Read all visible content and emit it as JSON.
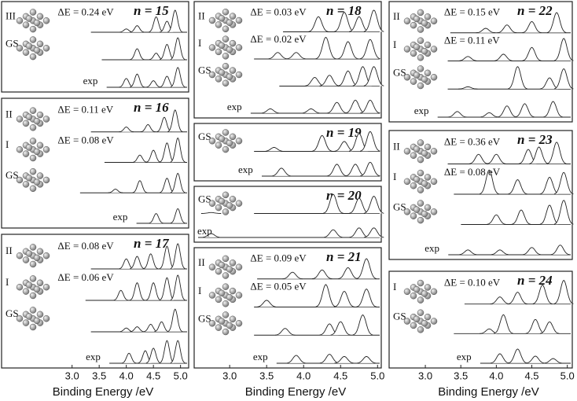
{
  "chart_data": [
    {
      "type": "spectra",
      "xlim": [
        1.7,
        5.15
      ],
      "xlabel": "Binding Energy /eV",
      "xticks": [
        {
          "value": 3,
          "label": "3.0"
        },
        {
          "value": 3.5,
          "label": "3.5"
        },
        {
          "value": 4,
          "label": "4.0"
        },
        {
          "value": 4.5,
          "label": "4.5"
        },
        {
          "value": 5,
          "label": "5.0"
        }
      ],
      "panels": [
        {
          "n": "n = 15",
          "traces": [
            {
              "label": "III",
              "delta_e": "ΔE = 0.24 eV",
              "peaks": [
                [
                  4.0,
                  0.15
                ],
                [
                  4.2,
                  0.3
                ],
                [
                  4.55,
                  0.7
                ],
                [
                  4.75,
                  0.5
                ],
                [
                  4.9,
                  1.0
                ]
              ]
            },
            {
              "label": "GS",
              "peaks": [
                [
                  4.2,
                  0.5
                ],
                [
                  4.55,
                  0.3
                ],
                [
                  4.75,
                  0.7
                ],
                [
                  4.95,
                  1.0
                ]
              ]
            },
            {
              "label": "exp",
              "peaks": [
                [
                  4.0,
                  0.4
                ],
                [
                  4.2,
                  0.6
                ],
                [
                  4.5,
                  0.3
                ],
                [
                  4.75,
                  0.5
                ],
                [
                  4.95,
                  0.9
                ]
              ]
            }
          ]
        },
        {
          "n": "n = 16",
          "traces": [
            {
              "label": "II",
              "delta_e": "ΔE = 0.11 eV",
              "peaks": [
                [
                  4.0,
                  0.2
                ],
                [
                  4.4,
                  0.3
                ],
                [
                  4.7,
                  0.6
                ],
                [
                  4.9,
                  0.9
                ]
              ]
            },
            {
              "label": "I",
              "delta_e": "ΔE = 0.08 eV",
              "peaks": [
                [
                  4.25,
                  0.3
                ],
                [
                  4.5,
                  0.5
                ],
                [
                  4.75,
                  0.8
                ],
                [
                  4.95,
                  1.0
                ]
              ]
            },
            {
              "label": "GS",
              "peaks": [
                [
                  3.8,
                  0.15
                ],
                [
                  4.25,
                  0.5
                ],
                [
                  4.75,
                  0.6
                ],
                [
                  4.95,
                  0.8
                ]
              ]
            },
            {
              "label": "exp",
              "peaks": [
                [
                  4.55,
                  0.4
                ],
                [
                  4.95,
                  0.6
                ]
              ]
            }
          ]
        },
        {
          "n": "n = 17",
          "traces": [
            {
              "label": "II",
              "delta_e": "ΔE = 0.08 eV",
              "peaks": [
                [
                  4.0,
                  0.4
                ],
                [
                  4.2,
                  0.5
                ],
                [
                  4.45,
                  0.6
                ],
                [
                  4.75,
                  0.9
                ],
                [
                  4.95,
                  1.0
                ]
              ]
            },
            {
              "label": "I",
              "delta_e": "ΔE = 0.06 eV",
              "peaks": [
                [
                  3.9,
                  0.4
                ],
                [
                  4.2,
                  0.7
                ],
                [
                  4.5,
                  0.7
                ],
                [
                  4.75,
                  0.9
                ],
                [
                  4.95,
                  1.0
                ]
              ]
            },
            {
              "label": "GS",
              "peaks": [
                [
                  4.0,
                  0.15
                ],
                [
                  4.2,
                  0.2
                ],
                [
                  4.45,
                  0.3
                ],
                [
                  4.65,
                  0.4
                ],
                [
                  4.9,
                  0.9
                ]
              ]
            },
            {
              "label": "exp",
              "peaks": [
                [
                  4.05,
                  0.4
                ],
                [
                  4.35,
                  0.5
                ],
                [
                  4.5,
                  0.6
                ],
                [
                  4.75,
                  0.9
                ],
                [
                  4.95,
                  0.9
                ]
              ]
            }
          ]
        }
      ]
    },
    {
      "type": "spectra",
      "xlim": [
        2.52,
        5.05
      ],
      "xlabel": "Binding Energy /eV",
      "xticks": [
        {
          "value": 3,
          "label": "3.0"
        },
        {
          "value": 3.5,
          "label": "3.5"
        },
        {
          "value": 4,
          "label": "4.0"
        },
        {
          "value": 4.5,
          "label": "4.5"
        },
        {
          "value": 5,
          "label": "5.0"
        }
      ],
      "panels": [
        {
          "n": "n = 18",
          "traces": [
            {
              "label": "II",
              "delta_e": "ΔE = 0.03 eV",
              "peaks": [
                [
                  4.2,
                  0.7
                ],
                [
                  4.55,
                  0.9
                ],
                [
                  4.75,
                  0.7
                ],
                [
                  4.95,
                  1.0
                ]
              ]
            },
            {
              "label": "I",
              "delta_e": "ΔE = 0.02 eV",
              "peaks": [
                [
                  3.65,
                  0.3
                ],
                [
                  3.9,
                  0.3
                ],
                [
                  4.3,
                  1.0
                ],
                [
                  4.6,
                  0.8
                ],
                [
                  4.9,
                  0.9
                ]
              ]
            },
            {
              "label": "GS",
              "peaks": [
                [
                  4.15,
                  0.4
                ],
                [
                  4.35,
                  0.5
                ],
                [
                  4.6,
                  0.7
                ],
                [
                  4.8,
                  0.9
                ],
                [
                  4.95,
                  0.9
                ]
              ]
            },
            {
              "label": "exp",
              "peaks": [
                [
                  3.55,
                  0.2
                ],
                [
                  4.1,
                  0.2
                ],
                [
                  4.45,
                  0.5
                ],
                [
                  4.7,
                  0.6
                ],
                [
                  4.9,
                  0.6
                ]
              ]
            }
          ]
        },
        {
          "n": "n = 19",
          "traces": [
            {
              "label": "GS",
              "peaks": [
                [
                  3.6,
                  0.2
                ],
                [
                  4.25,
                  0.8
                ],
                [
                  4.55,
                  0.5
                ],
                [
                  4.75,
                  0.9
                ],
                [
                  4.9,
                  1.0
                ]
              ]
            },
            {
              "label": "exp",
              "peaks": [
                [
                  3.7,
                  0.4
                ],
                [
                  4.45,
                  0.6
                ],
                [
                  4.7,
                  0.6
                ],
                [
                  4.9,
                  0.7
                ]
              ]
            }
          ]
        },
        {
          "n": "n = 20",
          "traces": [
            {
              "label": "GS",
              "peaks": [
                [
                  2.75,
                  0.05
                ],
                [
                  4.4,
                  1.0
                ],
                [
                  4.75,
                  0.8
                ],
                [
                  4.95,
                  0.9
                ]
              ]
            },
            {
              "label": "exp",
              "peaks": [
                [
                  2.75,
                  0.2
                ],
                [
                  4.4,
                  0.4
                ],
                [
                  4.75,
                  0.5
                ],
                [
                  4.95,
                  0.5
                ]
              ]
            }
          ]
        },
        {
          "n": "n = 21",
          "traces": [
            {
              "label": "II",
              "delta_e": "ΔE = 0.09 eV",
              "peaks": [
                [
                  3.85,
                  0.3
                ],
                [
                  4.25,
                  0.4
                ],
                [
                  4.6,
                  0.5
                ],
                [
                  4.85,
                  0.9
                ]
              ]
            },
            {
              "label": "I",
              "delta_e": "ΔE = 0.05 eV",
              "peaks": [
                [
                  3.5,
                  0.3
                ],
                [
                  4.3,
                  1.0
                ],
                [
                  4.55,
                  0.7
                ],
                [
                  4.85,
                  0.8
                ]
              ]
            },
            {
              "label": "GS",
              "peaks": [
                [
                  3.75,
                  0.3
                ],
                [
                  4.35,
                  0.5
                ],
                [
                  4.5,
                  0.6
                ],
                [
                  4.8,
                  0.9
                ]
              ]
            },
            {
              "label": "exp",
              "peaks": [
                [
                  3.9,
                  0.35
                ],
                [
                  4.35,
                  0.4
                ],
                [
                  4.55,
                  0.3
                ],
                [
                  4.85,
                  0.3
                ]
              ]
            }
          ]
        }
      ]
    },
    {
      "type": "spectra",
      "xlim": [
        2.49,
        5.07
      ],
      "xlabel": "Binding Energy /eV",
      "xticks": [
        {
          "value": 3,
          "label": "3.0"
        },
        {
          "value": 3.5,
          "label": "3.5"
        },
        {
          "value": 4,
          "label": "4.0"
        },
        {
          "value": 4.5,
          "label": "4.5"
        },
        {
          "value": 5,
          "label": "5.0"
        }
      ],
      "panels": [
        {
          "n": "n = 22",
          "traces": [
            {
              "label": "II",
              "delta_e": "ΔE = 0.15 eV",
              "peaks": [
                [
                  3.85,
                  0.2
                ],
                [
                  4.15,
                  0.35
                ],
                [
                  4.5,
                  0.5
                ],
                [
                  4.85,
                  0.9
                ]
              ]
            },
            {
              "label": "I",
              "delta_e": "ΔE = 0.11 eV",
              "peaks": [
                [
                  3.6,
                  0.2
                ],
                [
                  4.1,
                  0.3
                ],
                [
                  4.5,
                  0.6
                ],
                [
                  4.95,
                  1.0
                ]
              ]
            },
            {
              "label": "GS",
              "peaks": [
                [
                  3.6,
                  0.1
                ],
                [
                  4.3,
                  1.0
                ],
                [
                  4.75,
                  0.5
                ],
                [
                  4.95,
                  0.9
                ]
              ]
            },
            {
              "label": "exp",
              "peaks": [
                [
                  3.45,
                  0.25
                ],
                [
                  3.9,
                  0.2
                ],
                [
                  4.15,
                  0.5
                ],
                [
                  4.4,
                  0.6
                ],
                [
                  4.8,
                  0.7
                ]
              ]
            }
          ]
        },
        {
          "n": "n = 23",
          "traces": [
            {
              "label": "II",
              "delta_e": "ΔE = 0.36 eV",
              "peaks": [
                [
                  3.75,
                  0.4
                ],
                [
                  4.0,
                  0.4
                ],
                [
                  4.45,
                  0.6
                ],
                [
                  4.6,
                  0.7
                ],
                [
                  4.85,
                  0.9
                ]
              ]
            },
            {
              "label": "I",
              "delta_e": "ΔE = 0.08 eV",
              "peaks": [
                [
                  3.9,
                  1.0
                ],
                [
                  4.3,
                  0.6
                ],
                [
                  4.75,
                  0.7
                ],
                [
                  4.95,
                  0.9
                ]
              ]
            },
            {
              "label": "GS",
              "peaks": [
                [
                  4.0,
                  0.4
                ],
                [
                  4.35,
                  0.6
                ],
                [
                  4.75,
                  0.8
                ],
                [
                  4.95,
                  1.0
                ]
              ]
            },
            {
              "label": "exp",
              "peaks": [
                [
                  3.6,
                  0.2
                ],
                [
                  4.05,
                  0.2
                ],
                [
                  4.5,
                  0.3
                ],
                [
                  4.9,
                  0.4
                ]
              ]
            }
          ]
        },
        {
          "n": "n = 24",
          "traces": [
            {
              "label": "I",
              "delta_e": "ΔE = 0.10 eV",
              "peaks": [
                [
                  4.05,
                  0.3
                ],
                [
                  4.3,
                  0.5
                ],
                [
                  4.65,
                  0.8
                ],
                [
                  4.95,
                  1.0
                ]
              ]
            },
            {
              "label": "GS",
              "peaks": [
                [
                  3.9,
                  0.2
                ],
                [
                  4.1,
                  0.8
                ],
                [
                  4.55,
                  0.6
                ],
                [
                  4.75,
                  0.5
                ]
              ]
            },
            {
              "label": "exp",
              "peaks": [
                [
                  4.05,
                  0.4
                ],
                [
                  4.3,
                  0.6
                ],
                [
                  4.55,
                  0.3
                ],
                [
                  4.8,
                  0.2
                ]
              ]
            }
          ]
        }
      ]
    }
  ]
}
